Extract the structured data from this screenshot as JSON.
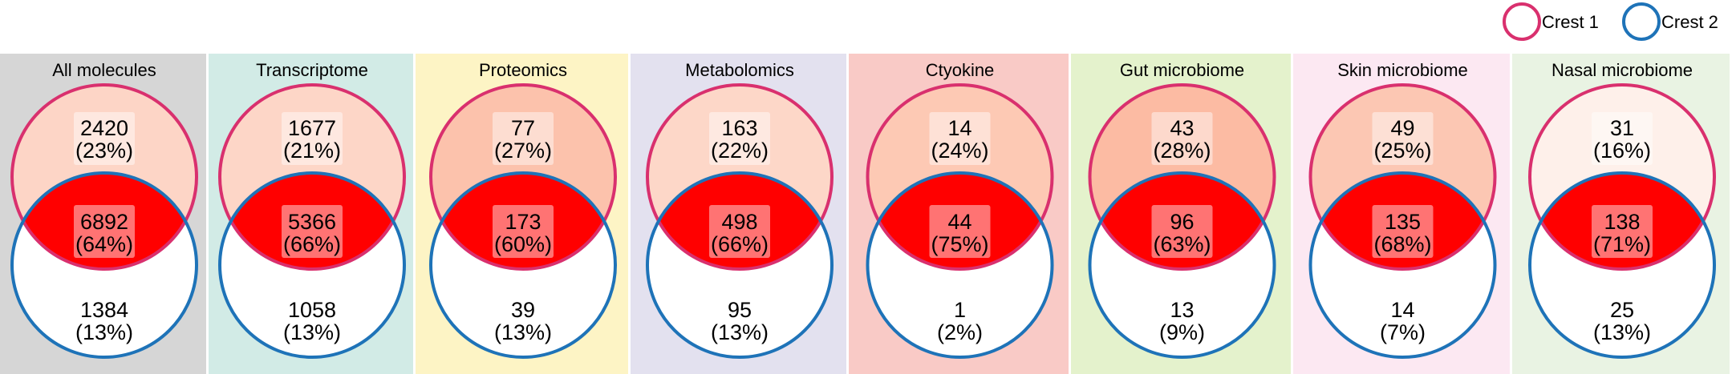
{
  "legend": [
    {
      "label": "Crest 1",
      "color": "#d9306e"
    },
    {
      "label": "Crest 2",
      "color": "#1e73b8"
    }
  ],
  "chart_data": {
    "type": "venn",
    "sets": [
      "Crest 1",
      "Crest 2"
    ],
    "panels": [
      {
        "title": "All molecules",
        "background": "#d6d6d6",
        "crest1_fill": "#fdd5c6",
        "crest1_only": {
          "count": "2420",
          "pct": "(23%)"
        },
        "overlap": {
          "count": "6892",
          "pct": "(64%)"
        },
        "crest2_only": {
          "count": "1384",
          "pct": "(13%)"
        }
      },
      {
        "title": "Transcriptome",
        "background": "#d2ebe6",
        "crest1_fill": "#fdd6c7",
        "crest1_only": {
          "count": "1677",
          "pct": "(21%)"
        },
        "overlap": {
          "count": "5366",
          "pct": "(66%)"
        },
        "crest2_only": {
          "count": "1058",
          "pct": "(13%)"
        }
      },
      {
        "title": "Proteomics",
        "background": "#fdf4c5",
        "crest1_fill": "#fcc2ac",
        "crest1_only": {
          "count": "77",
          "pct": "(27%)"
        },
        "overlap": {
          "count": "173",
          "pct": "(60%)"
        },
        "crest2_only": {
          "count": "39",
          "pct": "(13%)"
        }
      },
      {
        "title": "Metabolomics",
        "background": "#e3e1ef",
        "crest1_fill": "#fdd7c8",
        "crest1_only": {
          "count": "163",
          "pct": "(22%)"
        },
        "overlap": {
          "count": "498",
          "pct": "(66%)"
        },
        "crest2_only": {
          "count": "95",
          "pct": "(13%)"
        }
      },
      {
        "title": "Ctyokine",
        "background": "#f9cac6",
        "crest1_fill": "#fdc9b4",
        "crest1_only": {
          "count": "14",
          "pct": "(24%)"
        },
        "overlap": {
          "count": "44",
          "pct": "(75%)"
        },
        "crest2_only": {
          "count": "1",
          "pct": "(2%)"
        }
      },
      {
        "title": "Gut microbiome",
        "background": "#e4f2cc",
        "crest1_fill": "#fcbba3",
        "crest1_only": {
          "count": "43",
          "pct": "(28%)"
        },
        "overlap": {
          "count": "96",
          "pct": "(63%)"
        },
        "crest2_only": {
          "count": "13",
          "pct": "(9%)"
        }
      },
      {
        "title": "Skin microbiome",
        "background": "#fce8f2",
        "crest1_fill": "#fcc7b3",
        "crest1_only": {
          "count": "49",
          "pct": "(25%)"
        },
        "overlap": {
          "count": "135",
          "pct": "(68%)"
        },
        "crest2_only": {
          "count": "14",
          "pct": "(7%)"
        }
      },
      {
        "title": "Nasal microbiome",
        "background": "#e9f3e3",
        "crest1_fill": "#fef0ea",
        "crest1_only": {
          "count": "31",
          "pct": "(16%)"
        },
        "overlap": {
          "count": "138",
          "pct": "(71%)"
        },
        "crest2_only": {
          "count": "25",
          "pct": "(13%)"
        }
      }
    ],
    "overlap_fill": "#ff0000",
    "crest2_fill": "#ffffff"
  }
}
